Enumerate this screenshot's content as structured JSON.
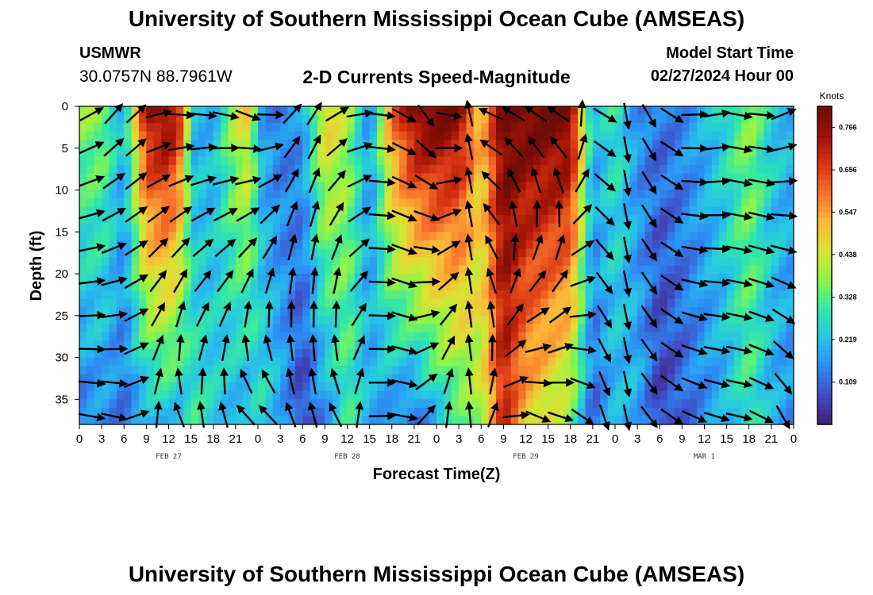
{
  "header": {
    "title": "University of Southern Mississippi Ocean Cube (AMSEAS)",
    "station": "USMWR",
    "coords": "30.0757N  88.7961W",
    "plot_title": "2-D Currents Speed-Magnitude",
    "start_label": "Model Start Time",
    "start_value": "02/27/2024 Hour 00"
  },
  "footer": {
    "title": "University of Southern Mississippi Ocean Cube (AMSEAS)"
  },
  "colors": {
    "cmap": [
      "#3b1e76",
      "#3f4cc4",
      "#2c8ef5",
      "#27c5e6",
      "#33e8a6",
      "#8cf54a",
      "#d8e332",
      "#fcb83a",
      "#f6702a",
      "#d73413",
      "#9b1204",
      "#6e0c08"
    ]
  },
  "chart_data": {
    "type": "heatmap",
    "title": "2-D Currents Speed-Magnitude",
    "xlabel": "Forecast Time(Z)",
    "ylabel": "Depth (ft)",
    "x_hours_range": [
      0,
      96
    ],
    "y_range": [
      0,
      38
    ],
    "x_tick_labels": [
      "0",
      "3",
      "6",
      "9",
      "12",
      "15",
      "18",
      "21",
      "0",
      "3",
      "6",
      "9",
      "12",
      "15",
      "18",
      "21",
      "0",
      "3",
      "6",
      "9",
      "12",
      "15",
      "18",
      "21",
      "0",
      "3",
      "6",
      "9",
      "12",
      "15",
      "18",
      "21",
      "0"
    ],
    "y_ticks": [
      0,
      5,
      10,
      15,
      20,
      25,
      30,
      35
    ],
    "date_labels": [
      {
        "label": "FEB 27",
        "hour": 12
      },
      {
        "label": "FEB 28",
        "hour": 36
      },
      {
        "label": "FEB 29",
        "hour": 60
      },
      {
        "label": "MAR 1",
        "hour": 84
      }
    ],
    "colorbar": {
      "unit": "Knots",
      "range": [
        0.0,
        0.82
      ],
      "ticks": [
        0.109,
        0.219,
        0.328,
        0.438,
        0.547,
        0.656,
        0.766
      ]
    },
    "speed_bands": [
      {
        "hour": 0,
        "top": 0.37,
        "bottom": 0.12
      },
      {
        "hour": 3,
        "top": 0.38,
        "bottom": 0.15
      },
      {
        "hour": 6,
        "top": 0.2,
        "bottom": 0.12
      },
      {
        "hour": 9,
        "top": 0.75,
        "bottom": 0.18
      },
      {
        "hour": 12,
        "top": 0.8,
        "bottom": 0.22
      },
      {
        "hour": 14,
        "top": 0.62,
        "bottom": 0.2
      },
      {
        "hour": 15,
        "top": 0.2,
        "bottom": 0.3
      },
      {
        "hour": 18,
        "top": 0.2,
        "bottom": 0.25
      },
      {
        "hour": 21,
        "top": 0.42,
        "bottom": 0.2
      },
      {
        "hour": 23,
        "top": 0.5,
        "bottom": 0.18
      },
      {
        "hour": 24,
        "top": 0.2,
        "bottom": 0.28
      },
      {
        "hour": 27,
        "top": 0.12,
        "bottom": 0.2
      },
      {
        "hour": 30,
        "top": 0.18,
        "bottom": 0.05
      },
      {
        "hour": 33,
        "top": 0.5,
        "bottom": 0.15
      },
      {
        "hour": 36,
        "top": 0.4,
        "bottom": 0.3
      },
      {
        "hour": 39,
        "top": 0.15,
        "bottom": 0.2
      },
      {
        "hour": 42,
        "top": 0.6,
        "bottom": 0.15
      },
      {
        "hour": 45,
        "top": 0.8,
        "bottom": 0.1
      },
      {
        "hour": 48,
        "top": 0.82,
        "bottom": 0.2
      },
      {
        "hour": 51,
        "top": 0.78,
        "bottom": 0.3
      },
      {
        "hour": 54,
        "top": 0.5,
        "bottom": 0.4
      },
      {
        "hour": 57,
        "top": 0.82,
        "bottom": 0.7
      },
      {
        "hour": 60,
        "top": 0.82,
        "bottom": 0.5
      },
      {
        "hour": 66,
        "top": 0.82,
        "bottom": 0.35
      },
      {
        "hour": 69,
        "top": 0.2,
        "bottom": 0.1
      },
      {
        "hour": 72,
        "top": 0.3,
        "bottom": 0.2
      },
      {
        "hour": 75,
        "top": 0.15,
        "bottom": 0.2
      },
      {
        "hour": 78,
        "top": 0.12,
        "bottom": 0.05
      },
      {
        "hour": 81,
        "top": 0.15,
        "bottom": 0.1
      },
      {
        "hour": 84,
        "top": 0.2,
        "bottom": 0.15
      },
      {
        "hour": 87,
        "top": 0.28,
        "bottom": 0.2
      },
      {
        "hour": 90,
        "top": 0.38,
        "bottom": 0.3
      },
      {
        "hour": 93,
        "top": 0.25,
        "bottom": 0.2
      },
      {
        "hour": 96,
        "top": 0.2,
        "bottom": 0.15
      }
    ],
    "vector_dirs_deg": [
      {
        "hour": 0,
        "top": 20,
        "bottom": -10
      },
      {
        "hour": 6,
        "top": 60,
        "bottom": -15
      },
      {
        "hour": 12,
        "top": -5,
        "bottom": 120
      },
      {
        "hour": 18,
        "top": -10,
        "bottom": 95
      },
      {
        "hour": 24,
        "top": -30,
        "bottom": 150
      },
      {
        "hour": 30,
        "top": 70,
        "bottom": 100
      },
      {
        "hour": 36,
        "top": 15,
        "bottom": 125
      },
      {
        "hour": 42,
        "top": -15,
        "bottom": -40
      },
      {
        "hour": 48,
        "top": -70,
        "bottom": 80
      },
      {
        "hour": 54,
        "top": 160,
        "bottom": 100
      },
      {
        "hour": 60,
        "top": 150,
        "bottom": -30
      },
      {
        "hour": 66,
        "top": 150,
        "bottom": -20
      },
      {
        "hour": 72,
        "top": -90,
        "bottom": -90
      },
      {
        "hour": 78,
        "top": -50,
        "bottom": -40
      },
      {
        "hour": 84,
        "top": 20,
        "bottom": -20
      },
      {
        "hour": 90,
        "top": -20,
        "bottom": -10
      },
      {
        "hour": 96,
        "top": 40,
        "bottom": -80
      }
    ]
  }
}
